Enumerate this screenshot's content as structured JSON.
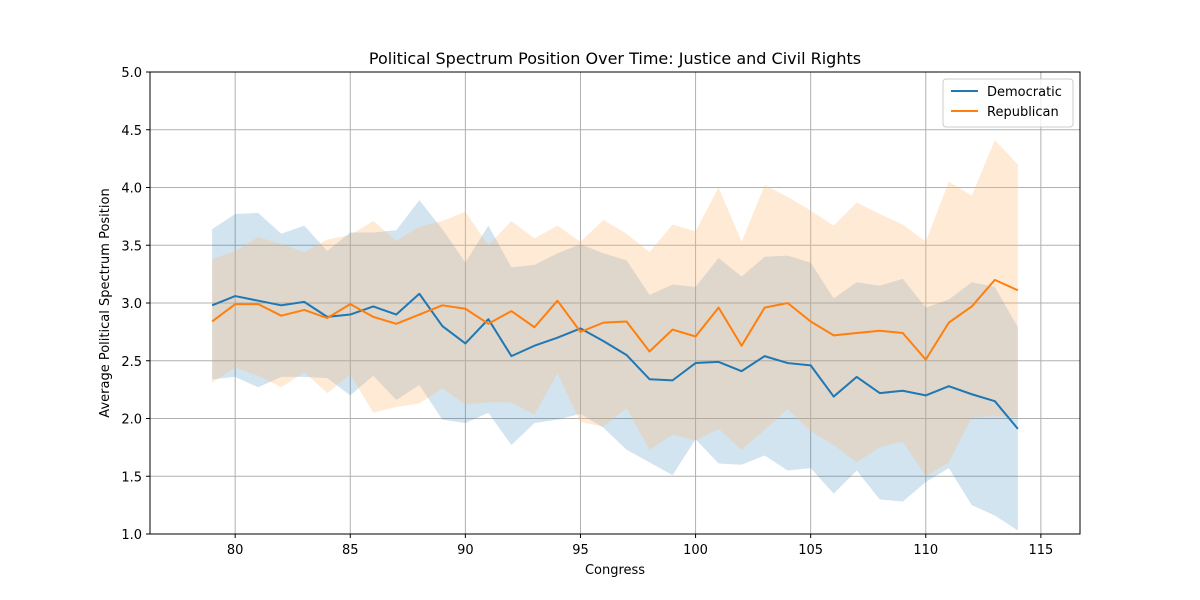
{
  "chart_data": {
    "type": "line",
    "title": "Political Spectrum Position Over Time: Justice and Civil Rights",
    "xlabel": "Congress",
    "ylabel": "Average Political Spectrum Position",
    "xlim": [
      76.3,
      116.7
    ],
    "ylim": [
      1.0,
      5.0
    ],
    "xticks": [
      80,
      85,
      90,
      95,
      100,
      105,
      110,
      115
    ],
    "yticks": [
      1.0,
      1.5,
      2.0,
      2.5,
      3.0,
      3.5,
      4.0,
      4.5,
      5.0
    ],
    "grid": true,
    "legend_position": "top-right",
    "x": [
      79,
      80,
      81,
      82,
      83,
      84,
      85,
      86,
      87,
      88,
      89,
      90,
      91,
      92,
      93,
      94,
      95,
      96,
      97,
      98,
      99,
      100,
      101,
      102,
      103,
      104,
      105,
      106,
      107,
      108,
      109,
      110,
      111,
      112,
      113,
      114
    ],
    "series": [
      {
        "name": "Democratic",
        "color": "#1f77b4",
        "band_color": "#1f77b4",
        "values": [
          2.98,
          3.06,
          3.02,
          2.98,
          3.01,
          2.88,
          2.9,
          2.97,
          2.9,
          3.08,
          2.8,
          2.65,
          2.86,
          2.54,
          2.63,
          2.7,
          2.78,
          2.67,
          2.55,
          2.34,
          2.33,
          2.48,
          2.49,
          2.41,
          2.54,
          2.48,
          2.46,
          2.19,
          2.36,
          2.22,
          2.24,
          2.2,
          2.28,
          2.21,
          2.15,
          1.91
        ],
        "upper": [
          3.64,
          3.77,
          3.78,
          3.6,
          3.67,
          3.45,
          3.61,
          3.61,
          3.63,
          3.89,
          3.64,
          3.35,
          3.67,
          3.31,
          3.33,
          3.43,
          3.51,
          3.43,
          3.37,
          3.07,
          3.16,
          3.14,
          3.39,
          3.23,
          3.4,
          3.41,
          3.35,
          3.04,
          3.18,
          3.15,
          3.21,
          2.96,
          3.03,
          3.18,
          3.14,
          2.79
        ],
        "lower": [
          2.34,
          2.36,
          2.27,
          2.36,
          2.36,
          2.35,
          2.2,
          2.37,
          2.16,
          2.29,
          1.99,
          1.96,
          2.05,
          1.77,
          1.96,
          1.99,
          2.04,
          1.92,
          1.73,
          1.62,
          1.51,
          1.82,
          1.61,
          1.6,
          1.68,
          1.55,
          1.57,
          1.35,
          1.55,
          1.3,
          1.28,
          1.45,
          1.57,
          1.25,
          1.16,
          1.03
        ]
      },
      {
        "name": "Republican",
        "color": "#ff7f0e",
        "band_color": "#ffbb78",
        "values": [
          2.84,
          2.99,
          2.99,
          2.89,
          2.94,
          2.87,
          2.99,
          2.88,
          2.82,
          2.9,
          2.98,
          2.95,
          2.82,
          2.93,
          2.79,
          3.02,
          2.75,
          2.83,
          2.84,
          2.58,
          2.77,
          2.71,
          2.96,
          2.63,
          2.96,
          3.0,
          2.84,
          2.72,
          2.74,
          2.76,
          2.74,
          2.51,
          2.83,
          2.97,
          3.2,
          3.11
        ],
        "upper": [
          3.38,
          3.45,
          3.57,
          3.51,
          3.44,
          3.55,
          3.59,
          3.71,
          3.54,
          3.66,
          3.71,
          3.79,
          3.5,
          3.71,
          3.56,
          3.67,
          3.53,
          3.72,
          3.6,
          3.44,
          3.68,
          3.62,
          4.0,
          3.53,
          4.02,
          3.92,
          3.8,
          3.67,
          3.87,
          3.77,
          3.68,
          3.53,
          4.05,
          3.93,
          4.41,
          4.2
        ],
        "lower": [
          2.31,
          2.44,
          2.37,
          2.27,
          2.4,
          2.22,
          2.38,
          2.05,
          2.1,
          2.13,
          2.26,
          2.12,
          2.14,
          2.14,
          2.03,
          2.39,
          1.97,
          1.93,
          2.09,
          1.73,
          1.86,
          1.81,
          1.91,
          1.73,
          1.9,
          2.08,
          1.89,
          1.77,
          1.62,
          1.75,
          1.8,
          1.5,
          1.62,
          2.01,
          2.02,
          2.01
        ]
      }
    ]
  }
}
